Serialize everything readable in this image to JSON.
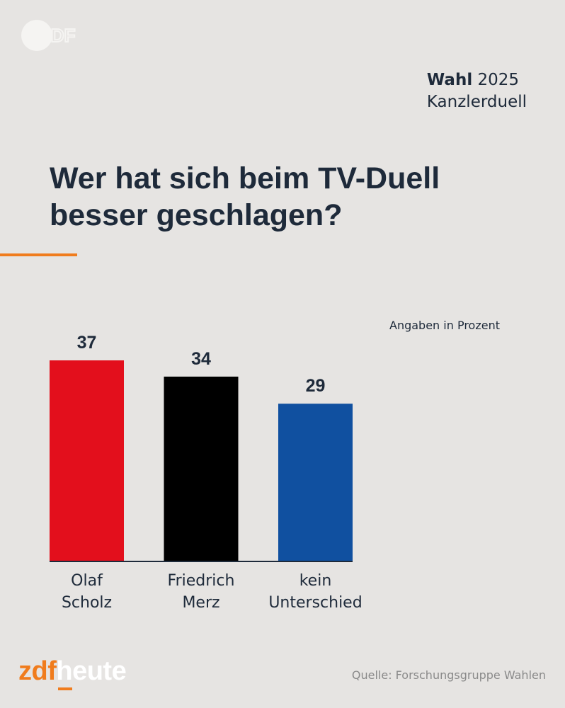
{
  "header": {
    "tag_bold": "Wahl",
    "tag_year": "2025",
    "tag_sub": "Kanzlerduell"
  },
  "headline": {
    "line1": "Wer hat sich beim TV-Duell",
    "line2": "besser geschlagen?"
  },
  "unit_note": "Angaben in Prozent",
  "chart_data": {
    "type": "bar",
    "title": "Wer hat sich beim TV-Duell besser geschlagen?",
    "categories": [
      [
        "Olaf",
        "Scholz"
      ],
      [
        "Friedrich",
        "Merz"
      ],
      [
        "kein",
        "Unterschied"
      ]
    ],
    "values": [
      37,
      34,
      29
    ],
    "colors": [
      "#e30f1c",
      "#000000",
      "#1050a0"
    ],
    "ylabel": "Angaben in Prozent",
    "ylim": [
      0,
      37
    ],
    "grid": false
  },
  "footer": {
    "brand_zdf": "zdf",
    "brand_heute": "heute",
    "source": "Quelle: Forschungsgruppe Wahlen"
  },
  "colors": {
    "background": "#e6e4e2",
    "text": "#1e2a3a",
    "accent": "#f07c1d"
  },
  "logo_top_text": "ZDF"
}
